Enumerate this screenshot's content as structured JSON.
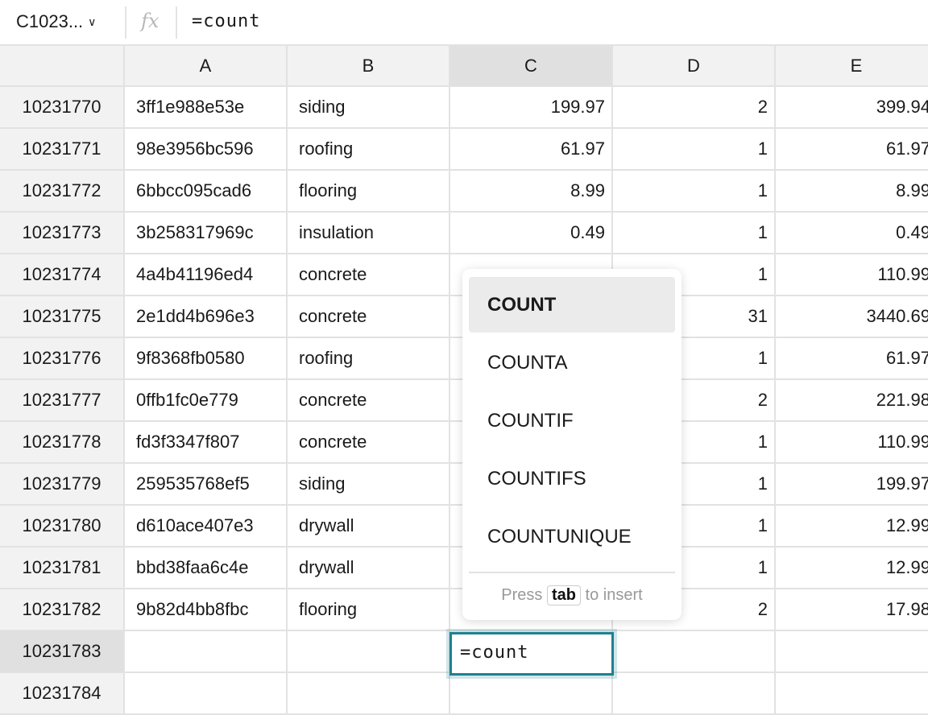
{
  "formula_bar": {
    "name_box": "C1023...",
    "fx_label": "fx",
    "formula": "=count"
  },
  "columns": [
    "A",
    "B",
    "C",
    "D",
    "E"
  ],
  "selected_column": "C",
  "rows": [
    {
      "row": "10231770",
      "a": "3ff1e988e53e",
      "b": "siding",
      "c": "199.97",
      "d": "2",
      "e": "399.94"
    },
    {
      "row": "10231771",
      "a": "98e3956bc596",
      "b": "roofing",
      "c": "61.97",
      "d": "1",
      "e": "61.97"
    },
    {
      "row": "10231772",
      "a": "6bbcc095cad6",
      "b": "flooring",
      "c": "8.99",
      "d": "1",
      "e": "8.99"
    },
    {
      "row": "10231773",
      "a": "3b258317969c",
      "b": "insulation",
      "c": "0.49",
      "d": "1",
      "e": "0.49"
    },
    {
      "row": "10231774",
      "a": "4a4b41196ed4",
      "b": "concrete",
      "c": "",
      "d": "1",
      "e": "110.99"
    },
    {
      "row": "10231775",
      "a": "2e1dd4b696e3",
      "b": "concrete",
      "c": "",
      "d": "31",
      "e": "3440.69"
    },
    {
      "row": "10231776",
      "a": "9f8368fb0580",
      "b": "roofing",
      "c": "",
      "d": "1",
      "e": "61.97"
    },
    {
      "row": "10231777",
      "a": "0ffb1fc0e779",
      "b": "concrete",
      "c": "",
      "d": "2",
      "e": "221.98"
    },
    {
      "row": "10231778",
      "a": "fd3f3347f807",
      "b": "concrete",
      "c": "",
      "d": "1",
      "e": "110.99"
    },
    {
      "row": "10231779",
      "a": "259535768ef5",
      "b": "siding",
      "c": "",
      "d": "1",
      "e": "199.97"
    },
    {
      "row": "10231780",
      "a": "d610ace407e3",
      "b": "drywall",
      "c": "",
      "d": "1",
      "e": "12.99"
    },
    {
      "row": "10231781",
      "a": "bbd38faa6c4e",
      "b": "drywall",
      "c": "",
      "d": "1",
      "e": "12.99"
    },
    {
      "row": "10231782",
      "a": "9b82d4bb8fbc",
      "b": "flooring",
      "c": "",
      "d": "2",
      "e": "17.98"
    },
    {
      "row": "10231783",
      "a": "",
      "b": "",
      "c": "",
      "d": "",
      "e": ""
    },
    {
      "row": "10231784",
      "a": "",
      "b": "",
      "c": "",
      "d": "",
      "e": ""
    }
  ],
  "editor": {
    "value": "=count"
  },
  "autocomplete": {
    "items": [
      "COUNT",
      "COUNTA",
      "COUNTIF",
      "COUNTIFS",
      "COUNTUNIQUE"
    ],
    "active_index": 0,
    "hint_before": "Press",
    "hint_key": "tab",
    "hint_after": "to insert"
  },
  "colors": {
    "accent": "#1e8090"
  }
}
